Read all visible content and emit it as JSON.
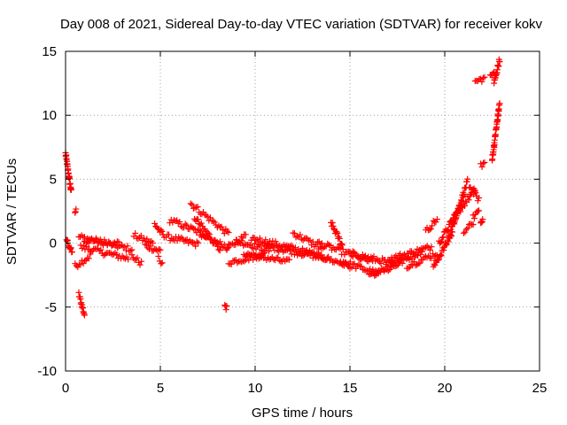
{
  "chart_data": {
    "type": "scatter",
    "title": "Day 008 of 2021, Sidereal Day-to-day VTEC variation (SDTVAR) for receiver kokv",
    "xlabel": "GPS time / hours",
    "ylabel": "SDTVAR / TECUs",
    "xlim": [
      0,
      25
    ],
    "ylim": [
      -10,
      15
    ],
    "xticks": [
      0,
      5,
      10,
      15,
      20,
      25
    ],
    "yticks": [
      -10,
      -5,
      0,
      5,
      10,
      15
    ],
    "grid": true,
    "marker": "+",
    "color": "#ff0000",
    "series": [
      {
        "name": "SDTVAR",
        "segments": [
          {
            "from": [
              0.0,
              7.0
            ],
            "to": [
              0.3,
              4.0
            ]
          },
          {
            "from": [
              0.05,
              0.3
            ],
            "to": [
              0.35,
              -0.8
            ]
          },
          {
            "from": [
              0.5,
              2.5
            ],
            "to": [
              0.55,
              2.5
            ]
          },
          {
            "from": [
              0.7,
              -4.0
            ],
            "to": [
              1.0,
              -5.6
            ]
          },
          {
            "from": [
              0.5,
              -1.8
            ],
            "to": [
              1.3,
              -1.0
            ]
          },
          {
            "from": [
              0.7,
              0.5
            ],
            "to": [
              3.5,
              -0.5
            ]
          },
          {
            "from": [
              0.8,
              -0.3
            ],
            "to": [
              3.3,
              -1.2
            ]
          },
          {
            "from": [
              1.0,
              0.2
            ],
            "to": [
              2.8,
              0.0
            ]
          },
          {
            "from": [
              3.5,
              -1.0
            ],
            "to": [
              4.0,
              -1.6
            ]
          },
          {
            "from": [
              3.6,
              0.6
            ],
            "to": [
              4.6,
              0.0
            ]
          },
          {
            "from": [
              4.2,
              -0.2
            ],
            "to": [
              5.0,
              -0.6
            ]
          },
          {
            "from": [
              4.7,
              1.5
            ],
            "to": [
              5.2,
              0.5
            ]
          },
          {
            "from": [
              4.9,
              -1.2
            ],
            "to": [
              5.1,
              -1.5
            ]
          },
          {
            "from": [
              5.3,
              0.5
            ],
            "to": [
              7.0,
              -0.1
            ]
          },
          {
            "from": [
              5.5,
              1.8
            ],
            "to": [
              7.5,
              0.6
            ]
          },
          {
            "from": [
              6.6,
              3.1
            ],
            "to": [
              8.6,
              0.7
            ]
          },
          {
            "from": [
              6.8,
              2.0
            ],
            "to": [
              8.2,
              -0.5
            ]
          },
          {
            "from": [
              7.1,
              0.5
            ],
            "to": [
              8.6,
              -0.3
            ]
          },
          {
            "from": [
              8.4,
              -4.8
            ],
            "to": [
              8.5,
              -5.1
            ]
          },
          {
            "from": [
              8.5,
              -0.5
            ],
            "to": [
              9.5,
              0.6
            ]
          },
          {
            "from": [
              8.6,
              -1.5
            ],
            "to": [
              10.5,
              -0.9
            ]
          },
          {
            "from": [
              9.0,
              0.2
            ],
            "to": [
              10.8,
              -0.6
            ]
          },
          {
            "from": [
              9.4,
              -0.8
            ],
            "to": [
              11.8,
              -1.5
            ]
          },
          {
            "from": [
              9.8,
              0.4
            ],
            "to": [
              12.5,
              -0.6
            ]
          },
          {
            "from": [
              10.5,
              -0.2
            ],
            "to": [
              13.8,
              -1.2
            ]
          },
          {
            "from": [
              12.0,
              0.8
            ],
            "to": [
              13.5,
              -0.4
            ]
          },
          {
            "from": [
              12.5,
              -0.6
            ],
            "to": [
              15.0,
              -1.8
            ]
          },
          {
            "from": [
              13.3,
              0.0
            ],
            "to": [
              16.2,
              -1.5
            ]
          },
          {
            "from": [
              14.0,
              1.6
            ],
            "to": [
              14.6,
              -0.2
            ]
          },
          {
            "from": [
              14.5,
              -1.4
            ],
            "to": [
              16.5,
              -2.4
            ]
          },
          {
            "from": [
              15.0,
              -0.8
            ],
            "to": [
              17.3,
              -1.6
            ]
          },
          {
            "from": [
              16.0,
              -2.6
            ],
            "to": [
              17.8,
              -1.0
            ]
          },
          {
            "from": [
              16.8,
              -2.2
            ],
            "to": [
              18.8,
              -0.6
            ]
          },
          {
            "from": [
              17.2,
              -1.2
            ],
            "to": [
              19.3,
              -0.3
            ]
          },
          {
            "from": [
              18.0,
              -1.8
            ],
            "to": [
              19.6,
              -0.8
            ]
          },
          {
            "from": [
              19.0,
              0.9
            ],
            "to": [
              19.6,
              1.9
            ]
          },
          {
            "from": [
              19.4,
              -1.9
            ],
            "to": [
              20.4,
              0.8
            ]
          },
          {
            "from": [
              19.7,
              0.0
            ],
            "to": [
              20.8,
              2.8
            ]
          },
          {
            "from": [
              20.2,
              0.4
            ],
            "to": [
              21.2,
              4.8
            ]
          },
          {
            "from": [
              20.5,
              2.0
            ],
            "to": [
              21.6,
              4.2
            ]
          },
          {
            "from": [
              21.0,
              0.8
            ],
            "to": [
              21.5,
              1.6
            ]
          },
          {
            "from": [
              21.3,
              4.4
            ],
            "to": [
              21.8,
              3.4
            ]
          },
          {
            "from": [
              21.5,
              2.0
            ],
            "to": [
              21.8,
              2.6
            ]
          },
          {
            "from": [
              21.9,
              1.6
            ],
            "to": [
              22.0,
              2.0
            ]
          },
          {
            "from": [
              21.9,
              6.0
            ],
            "to": [
              22.1,
              6.3
            ]
          },
          {
            "from": [
              21.6,
              12.6
            ],
            "to": [
              22.1,
              12.9
            ]
          },
          {
            "from": [
              22.5,
              6.5
            ],
            "to": [
              22.9,
              11.0
            ]
          },
          {
            "from": [
              22.6,
              12.5
            ],
            "to": [
              22.9,
              14.4
            ]
          },
          {
            "from": [
              22.4,
              13.0
            ],
            "to": [
              22.6,
              13.2
            ]
          }
        ]
      }
    ]
  }
}
